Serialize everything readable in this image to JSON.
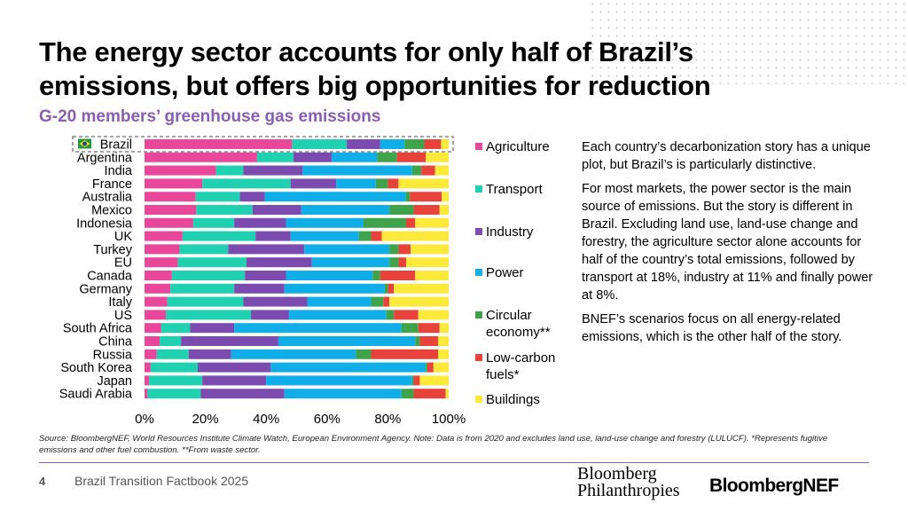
{
  "header": {
    "title_line1": "The energy sector accounts for only half of Brazil’s",
    "title_line2": "emissions, but offers big opportunities for reduction",
    "subtitle": "G-20 members’ greenhouse gas emissions"
  },
  "legend": {
    "items": [
      {
        "label": "Agriculture",
        "color": "#e8479a"
      },
      {
        "label": "Transport",
        "color": "#1fd1b0"
      },
      {
        "label": "Industry",
        "color": "#7b4bb0"
      },
      {
        "label": "Power",
        "color": "#10aee8"
      },
      {
        "label": "Circular economy**",
        "color": "#3ea34b"
      },
      {
        "label": "Low-carbon fuels*",
        "color": "#e8433a"
      },
      {
        "label": "Buildings",
        "color": "#fde93a"
      }
    ]
  },
  "chart_data": {
    "type": "bar",
    "orientation": "horizontal",
    "stacked": "percent",
    "title": "G-20 members’ greenhouse gas emissions",
    "xlabel": "",
    "ylabel": "",
    "xlim": [
      0,
      100
    ],
    "x_ticks": [
      "0%",
      "20%",
      "40%",
      "60%",
      "80%",
      "100%"
    ],
    "highlighted_category": "Brazil",
    "highlight_icon": "brazil-flag-icon",
    "categories": [
      "Brazil",
      "Argentina",
      "India",
      "France",
      "Australia",
      "Mexico",
      "Indonesia",
      "UK",
      "Turkey",
      "EU",
      "Canada",
      "Germany",
      "Italy",
      "US",
      "South Africa",
      "China",
      "Russia",
      "South Korea",
      "Japan",
      "Saudi Arabia"
    ],
    "series": [
      {
        "name": "Agriculture",
        "values": [
          48.5,
          37,
          23.5,
          19,
          18.5,
          17,
          16,
          12.5,
          11.5,
          11,
          9,
          8.5,
          7.5,
          7,
          5.5,
          5,
          4,
          2,
          1.5,
          1
        ]
      },
      {
        "name": "Transport",
        "values": [
          18,
          12,
          9,
          29,
          16,
          18.5,
          13.5,
          24,
          16,
          22.5,
          24,
          21,
          25,
          28,
          9.5,
          7,
          10.5,
          15.5,
          17.5,
          17.5
        ]
      },
      {
        "name": "Industry",
        "values": [
          11,
          12.5,
          19.5,
          15,
          9,
          16,
          17,
          11.5,
          25,
          21.5,
          13.5,
          16.5,
          21,
          12.5,
          14.5,
          32,
          14,
          24,
          21,
          27.5
        ]
      },
      {
        "name": "Power",
        "values": [
          8,
          15,
          36,
          13,
          51,
          29,
          25.5,
          22.5,
          28,
          25.5,
          28.5,
          33,
          21,
          32,
          55,
          45,
          41,
          51,
          48,
          38.5
        ]
      },
      {
        "name": "Circular economy**",
        "values": [
          6.5,
          6.5,
          3,
          4,
          1.5,
          8,
          14,
          4,
          3,
          3,
          2.5,
          1,
          4,
          2.5,
          5.5,
          1.5,
          5,
          0.5,
          0.5,
          4
        ]
      },
      {
        "name": "Low-carbon fuels*",
        "values": [
          5.5,
          9.5,
          4.5,
          3.5,
          11.5,
          8.5,
          3,
          3.5,
          4,
          2.5,
          11.5,
          2,
          2,
          8,
          7,
          6,
          22,
          2,
          2,
          10.5
        ]
      },
      {
        "name": "Buildings",
        "values": [
          2.5,
          7.5,
          4.5,
          16.5,
          2.5,
          3,
          11,
          22,
          12.5,
          14,
          11,
          18,
          19.5,
          10,
          3,
          3.5,
          3.5,
          5,
          9.5,
          1
        ]
      }
    ]
  },
  "body_text": {
    "p1": "Each country’s decarbonization story has a unique plot, but Brazil’s is particularly distinctive.",
    "p2": "For most markets, the power sector is the main source of emissions. But the story is different in Brazil. Excluding land use, land-use change and forestry, the agriculture sector alone accounts for half of the country’s total emissions, followed by transport at 18%, industry at 11% and finally power at 8%.",
    "p3": "BNEF’s scenarios focus on all energy-related emissions, which is the other half of the story."
  },
  "source_note": "Source: BloombergNEF, World Resources Institute Climate Watch, European Environment Agency. Note: Data is from 2020 and excludes land use, land-use change and forestry (LULUCF). *Represents fugitive emissions and other fuel combustion. **From waste sector.",
  "footer": {
    "page_number": "4",
    "doc_title": "Brazil Transition Factbook 2025",
    "logo_left_line1": "Bloomberg",
    "logo_left_line2": "Philanthropies",
    "logo_right": "BloombergNEF"
  }
}
